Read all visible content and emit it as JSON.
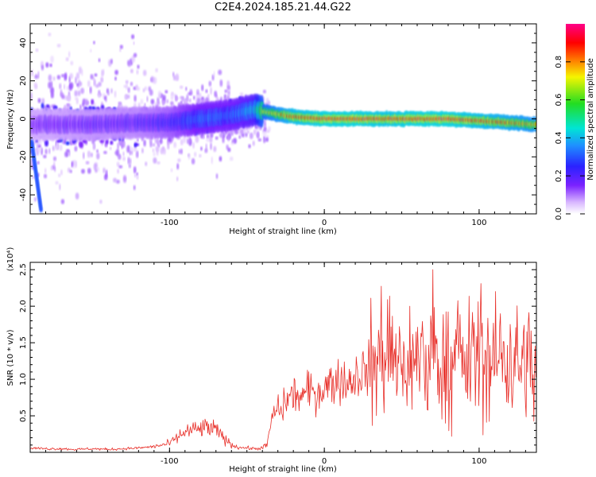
{
  "page": {
    "title": "C2E4.2024.185.21.44.G22"
  },
  "colors": {
    "line": "#e8302a",
    "axis": "#000000",
    "spectrogram_scale": [
      "#ffffff",
      "#d9b8ff",
      "#7b22ff",
      "#3a1cff",
      "#1e90ff",
      "#00e5d5",
      "#22dd22",
      "#f5f500",
      "#ff8800",
      "#ff0000",
      "#ff00aa"
    ]
  },
  "chart_data": [
    {
      "type": "heatmap",
      "title": "C2E4.2024.185.21.44.G22",
      "xlabel": "Height of straight line (km)",
      "ylabel": "Frequency (Hz)",
      "xlim": [
        -190,
        137
      ],
      "ylim": [
        -50,
        50
      ],
      "xticks": [
        -100,
        0,
        100
      ],
      "yticks": [
        -40,
        -20,
        0,
        20,
        40
      ],
      "colorbar": {
        "label": "Normalized spectral amplitude",
        "range": [
          0,
          1
        ],
        "ticks": [
          "0.0",
          "0.2",
          "0.4",
          "0.6",
          "0.8"
        ]
      },
      "ridge": {
        "x": [
          -190,
          -150,
          -120,
          -100,
          -80,
          -60,
          -45,
          -40,
          -20,
          0,
          20,
          40,
          60,
          80,
          100,
          120,
          137
        ],
        "frequency": [
          -3,
          -3,
          -2,
          -2,
          0,
          2,
          5,
          4,
          1,
          0,
          0,
          0,
          0,
          0,
          -1,
          -2,
          -3
        ],
        "normalized_amplitude": [
          0.15,
          0.18,
          0.2,
          0.25,
          0.35,
          0.35,
          0.45,
          0.7,
          0.9,
          0.95,
          0.95,
          0.92,
          0.95,
          0.95,
          0.9,
          0.85,
          0.8
        ]
      }
    },
    {
      "type": "line",
      "xlabel": "Height of straight line (km)",
      "ylabel": "SNR (10 * v/v)",
      "y_multiplier": "(x10⁴)",
      "xlim": [
        -190,
        137
      ],
      "ylim": [
        0,
        2.6
      ],
      "xticks": [
        -100,
        0,
        100
      ],
      "yticks": [
        "0.5",
        "1.0",
        "1.5",
        "2.0",
        "2.5"
      ],
      "series": [
        {
          "x": [
            -190,
            -180,
            -170,
            -160,
            -150,
            -140,
            -130,
            -120,
            -110,
            -100,
            -95,
            -90,
            -85,
            -80,
            -75,
            -70,
            -65,
            -60,
            -55,
            -50,
            -45,
            -40,
            -37,
            -35,
            -33,
            -30,
            -28,
            -25,
            -20,
            -15,
            -10,
            -5,
            0,
            5,
            10,
            15,
            20,
            25,
            30,
            35,
            40,
            45,
            50,
            55,
            60,
            65,
            70,
            75,
            80,
            85,
            90,
            95,
            100,
            105,
            110,
            115,
            120,
            125,
            130,
            135
          ],
          "y": [
            0.06,
            0.05,
            0.05,
            0.04,
            0.05,
            0.04,
            0.05,
            0.06,
            0.08,
            0.12,
            0.2,
            0.28,
            0.3,
            0.32,
            0.34,
            0.3,
            0.2,
            0.1,
            0.07,
            0.06,
            0.05,
            0.06,
            0.1,
            0.35,
            0.5,
            0.62,
            0.55,
            0.7,
            0.8,
            0.75,
            0.85,
            0.8,
            0.9,
            0.95,
            1.0,
            0.95,
            1.05,
            1.1,
            1.2,
            1.25,
            1.3,
            1.25,
            1.15,
            1.3,
            1.25,
            1.2,
            1.3,
            1.25,
            1.15,
            1.3,
            1.2,
            1.3,
            1.35,
            1.2,
            1.25,
            1.35,
            1.3,
            1.2,
            1.3,
            1.1
          ]
        }
      ]
    }
  ]
}
